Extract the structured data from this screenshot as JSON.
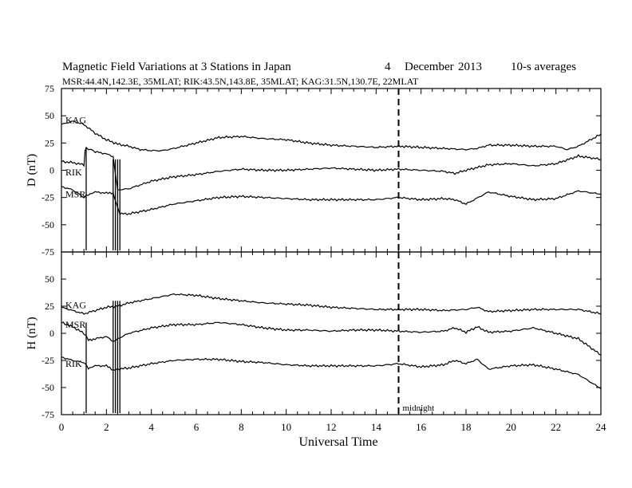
{
  "chart_data": [
    {
      "type": "line",
      "title": "Magnetic Field Variations at 3 Stations in Japan",
      "date_day": "4",
      "date_month": "December",
      "date_year": "2013",
      "averaging": "10-s averages",
      "subtitle": "MSR:44.4N,142.3E, 35MLAT;  RIK:43.5N,143.8E, 35MLAT;  KAG:31.5N,130.7E, 22MLAT",
      "ylabel": "D (nT)",
      "xlim": [
        0,
        24
      ],
      "ylim": [
        -75,
        75
      ],
      "yticks": [
        "75",
        "50",
        "25",
        "0",
        "-25",
        "-50",
        "-75"
      ],
      "midline_x": 15,
      "series": [
        {
          "name": "KAG",
          "x": [
            0,
            0.5,
            1,
            1.5,
            2,
            2.5,
            3,
            3.5,
            4,
            4.5,
            5,
            6,
            7,
            8,
            9,
            10,
            11,
            12,
            13,
            14,
            15,
            16,
            17,
            18,
            18.5,
            19,
            20,
            21,
            22,
            22.5,
            23,
            24
          ],
          "y": [
            42,
            45,
            42,
            34,
            28,
            24,
            22,
            19,
            18,
            18,
            20,
            25,
            30,
            31,
            29,
            28,
            25,
            23,
            22,
            21,
            22,
            21,
            20,
            19,
            20,
            23,
            23,
            22,
            22,
            19,
            22,
            33
          ]
        },
        {
          "name": "RIK",
          "x": [
            0,
            0.5,
            1,
            1.05,
            1.1,
            1.3,
            1.5,
            2,
            2.3,
            2.5,
            3,
            4,
            5,
            6,
            7,
            8,
            9,
            10,
            11,
            12,
            13,
            14,
            15,
            16,
            17,
            17.5,
            18,
            19,
            20,
            21,
            22,
            23,
            24
          ],
          "y": [
            8,
            7,
            5,
            18,
            20,
            19,
            17,
            15,
            12,
            -18,
            -17,
            -10,
            -6,
            -4,
            -1,
            1,
            0,
            0,
            1,
            2,
            1,
            0,
            1,
            0,
            -1,
            -3,
            0,
            5,
            6,
            4,
            6,
            13,
            10
          ]
        },
        {
          "name": "MSR",
          "x": [
            0,
            0.5,
            1,
            1.2,
            1.5,
            2,
            2.3,
            2.6,
            3,
            4,
            5,
            6,
            7,
            8,
            9,
            10,
            11,
            12,
            13,
            14,
            15,
            16,
            17,
            17.5,
            18,
            19,
            20,
            21,
            22,
            23,
            24
          ],
          "y": [
            -15,
            -18,
            -25,
            -22,
            -20,
            -21,
            -21,
            -40,
            -40,
            -36,
            -31,
            -28,
            -25,
            -24,
            -25,
            -26,
            -27,
            -27,
            -27,
            -27,
            -25,
            -27,
            -26,
            -27,
            -31,
            -20,
            -24,
            -27,
            -26,
            -19,
            -22
          ]
        }
      ],
      "spikes_x": [
        1.1,
        2.3,
        2.4,
        2.5,
        2.6
      ],
      "series_labels_y": {
        "KAG": 46,
        "RIK": -2,
        "MSR": -22
      }
    },
    {
      "type": "line",
      "xlabel": "Universal Time",
      "ylabel": "H (nT)",
      "xlim": [
        0,
        24
      ],
      "ylim": [
        -75,
        75
      ],
      "yticks": [
        "50",
        "25",
        "0",
        "-25",
        "-50",
        "-75"
      ],
      "xticks": [
        "0",
        "2",
        "4",
        "6",
        "8",
        "10",
        "12",
        "14",
        "16",
        "18",
        "20",
        "22",
        "24"
      ],
      "annotation": "midnight",
      "midline_x": 15,
      "series": [
        {
          "name": "KAG",
          "x": [
            0,
            0.5,
            1,
            1.5,
            2,
            2.5,
            3,
            4,
            5,
            6,
            7,
            8,
            9,
            10,
            11,
            12,
            13,
            14,
            15,
            16,
            17,
            18,
            18.5,
            19,
            20,
            21,
            22,
            23,
            24
          ],
          "y": [
            24,
            21,
            18,
            21,
            24,
            25,
            28,
            32,
            36,
            35,
            32,
            30,
            28,
            27,
            26,
            24,
            23,
            22,
            22,
            22,
            21,
            22,
            24,
            20,
            21,
            22,
            22,
            22,
            18
          ]
        },
        {
          "name": "MSR",
          "x": [
            0,
            0.5,
            1,
            1.2,
            1.5,
            2,
            2.3,
            2.5,
            3,
            4,
            5,
            6,
            7,
            8,
            9,
            10,
            11,
            12,
            13,
            14,
            15,
            16,
            17,
            17.5,
            18,
            18.5,
            19,
            20,
            21,
            22,
            23,
            24
          ],
          "y": [
            10,
            6,
            0,
            -6,
            -5,
            -3,
            -8,
            -5,
            0,
            5,
            8,
            8,
            10,
            8,
            5,
            3,
            3,
            2,
            3,
            3,
            2,
            1,
            2,
            5,
            1,
            6,
            1,
            2,
            5,
            0,
            -5,
            -20
          ]
        },
        {
          "name": "RIK",
          "x": [
            0,
            0.5,
            1,
            1.2,
            1.5,
            2,
            2.3,
            2.5,
            3,
            4,
            5,
            6,
            7,
            8,
            9,
            10,
            11,
            12,
            13,
            14,
            15,
            16,
            17,
            17.5,
            18,
            18.5,
            19,
            20,
            21,
            22,
            23,
            24
          ],
          "y": [
            -22,
            -25,
            -27,
            -32,
            -30,
            -30,
            -34,
            -33,
            -32,
            -28,
            -25,
            -24,
            -24,
            -26,
            -27,
            -29,
            -30,
            -30,
            -30,
            -30,
            -28,
            -31,
            -29,
            -25,
            -28,
            -24,
            -33,
            -30,
            -29,
            -33,
            -38,
            -51
          ]
        }
      ],
      "spikes_x": [
        1.1,
        2.3,
        2.4,
        2.5,
        2.6
      ],
      "series_labels_y": {
        "KAG": 26,
        "MSR": 8,
        "RIK": -28
      }
    }
  ]
}
